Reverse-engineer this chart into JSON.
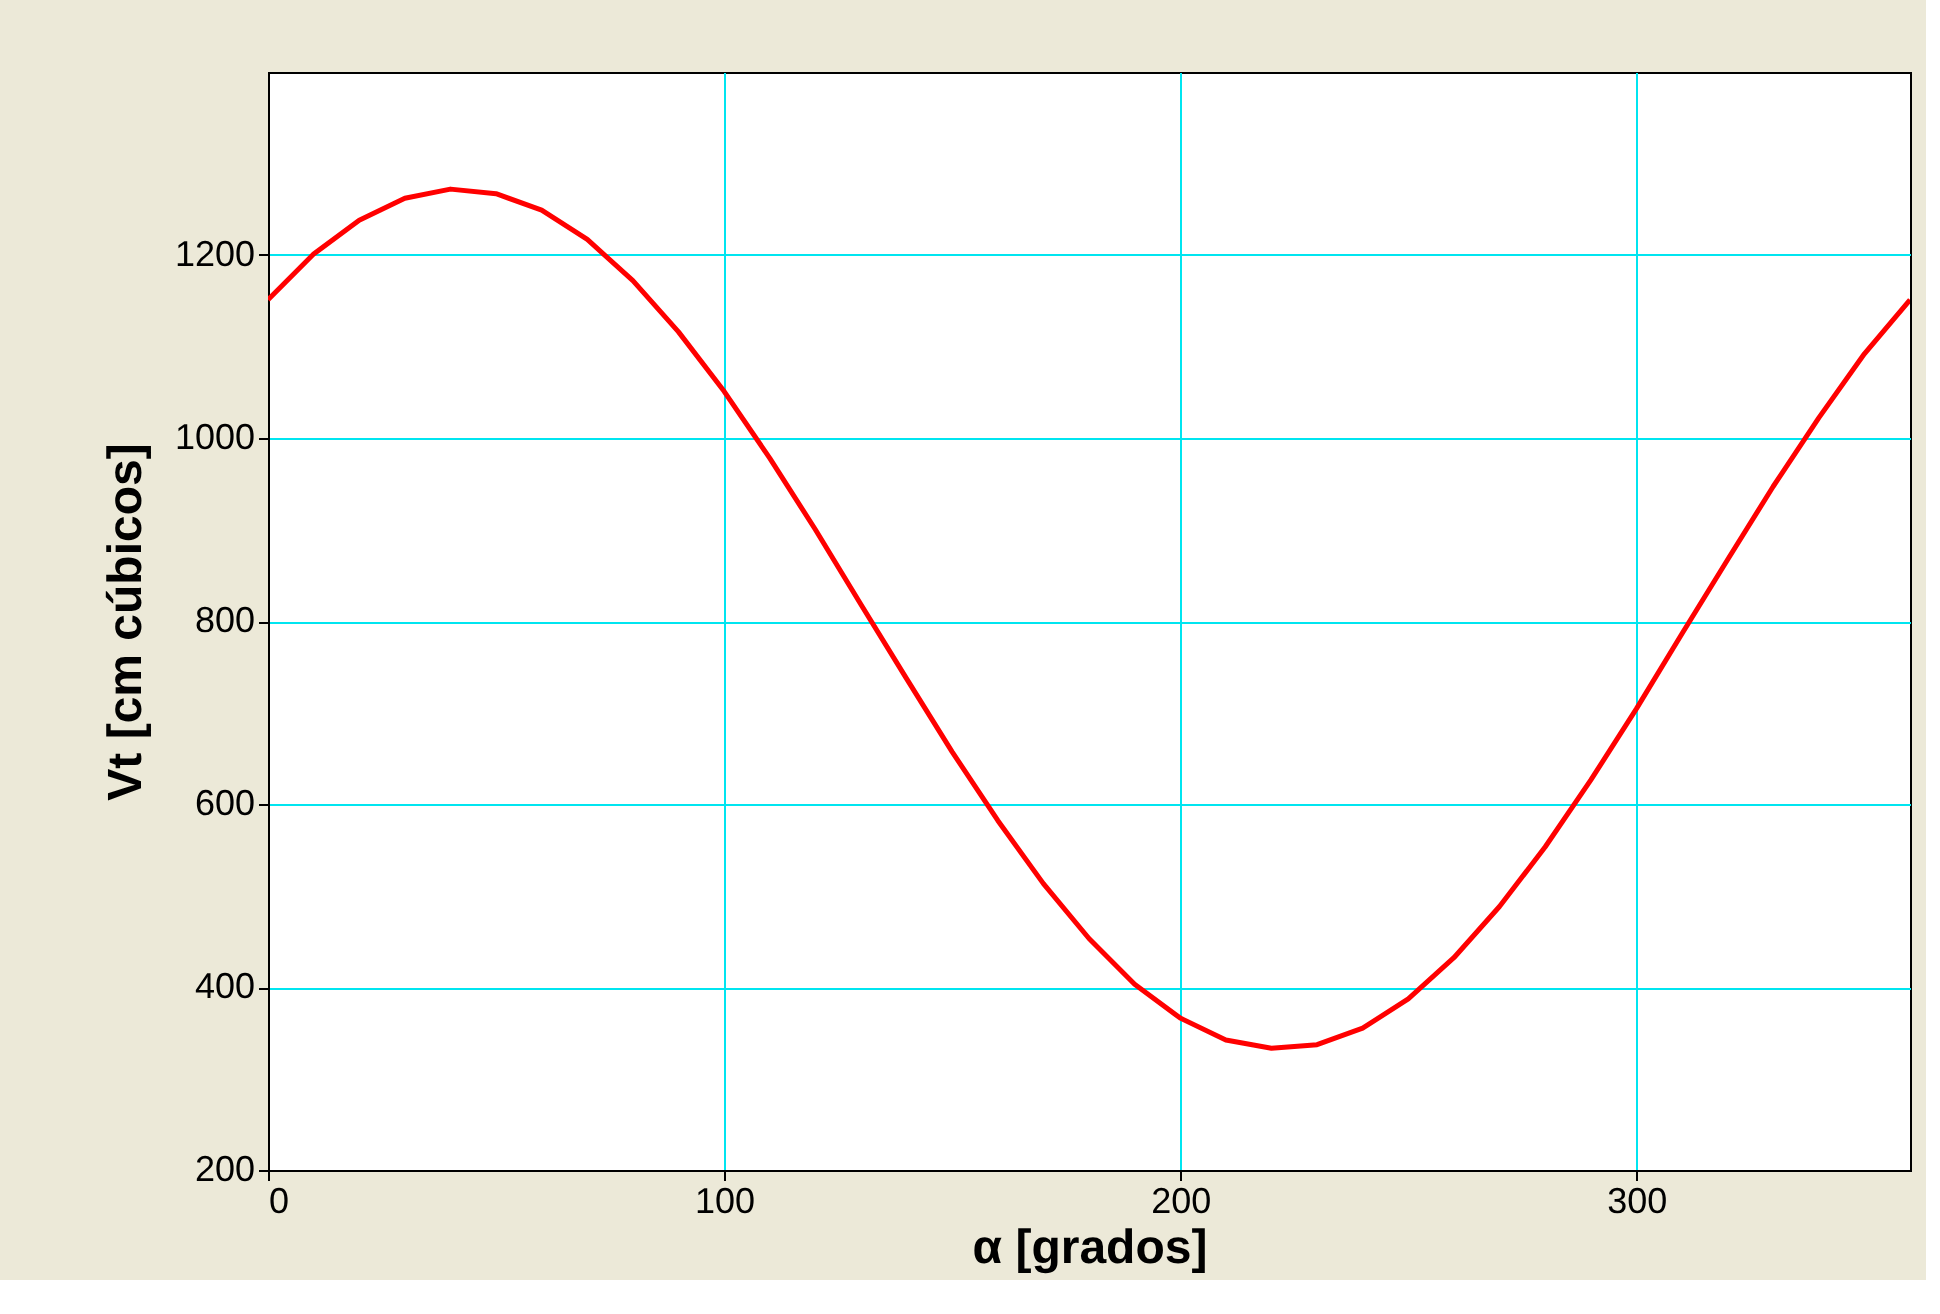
{
  "chart_data": {
    "type": "line",
    "xlabel": "α  [grados]",
    "ylabel": "Vt  [cm cúbicos]",
    "x": [
      0,
      10,
      20,
      30,
      40,
      50,
      60,
      70,
      80,
      90,
      100,
      110,
      120,
      130,
      140,
      150,
      160,
      170,
      180,
      190,
      200,
      210,
      220,
      230,
      240,
      250,
      260,
      270,
      280,
      290,
      300,
      310,
      320,
      330,
      340,
      350,
      360
    ],
    "series": [
      {
        "color": "#ff0000",
        "values": [
          1151,
          1201,
          1238,
          1262,
          1272,
          1267,
          1249,
          1217,
          1172,
          1116,
          1051,
          978,
          900,
          818,
          737,
          657,
          582,
          513,
          453,
          403,
          366,
          342,
          333,
          337,
          355,
          387,
          432,
          488,
          553,
          626,
          704,
          786,
          867,
          947,
          1022,
          1092,
          1151
        ]
      }
    ],
    "xlim": [
      0,
      360
    ],
    "ylim": [
      200,
      1400
    ],
    "xticks": [
      0,
      100,
      200,
      300
    ],
    "yticks": [
      200,
      400,
      600,
      800,
      1000,
      1200
    ],
    "grid": true,
    "marker": "none",
    "line_style": "solid"
  }
}
